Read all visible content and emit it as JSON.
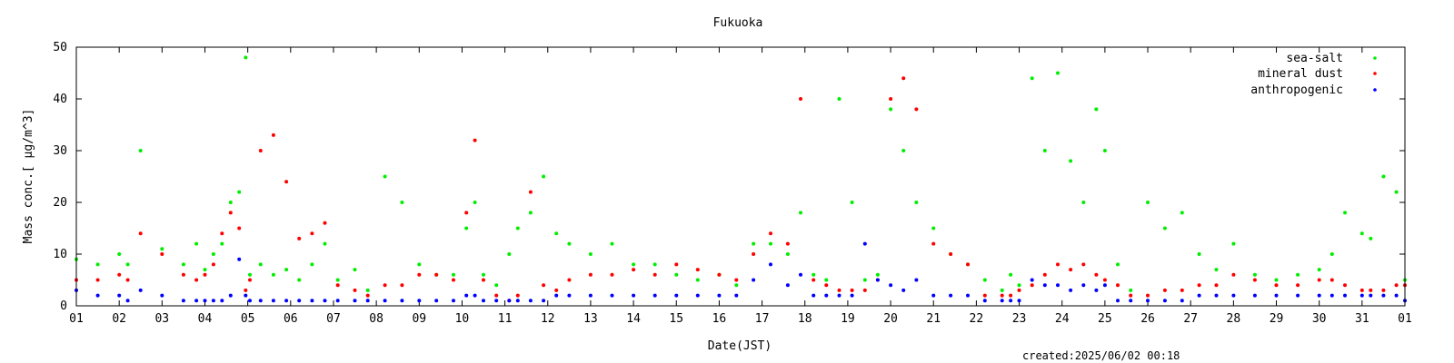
{
  "chart_data": {
    "type": "scatter",
    "title": "Fukuoka",
    "xlabel": "Date(JST)",
    "ylabel": "Mass conc.[ μg/m^3]",
    "xlim": [
      0,
      31
    ],
    "ylim": [
      0,
      50
    ],
    "x_ticks": [
      "01",
      "02",
      "03",
      "04",
      "05",
      "06",
      "07",
      "08",
      "09",
      "10",
      "11",
      "12",
      "13",
      "14",
      "15",
      "16",
      "17",
      "18",
      "19",
      "20",
      "21",
      "22",
      "23",
      "24",
      "25",
      "26",
      "27",
      "28",
      "29",
      "30",
      "31",
      "01"
    ],
    "y_ticks": [
      0,
      10,
      20,
      30,
      40,
      50
    ],
    "grid": false,
    "legend_position": "top-right",
    "footer": "created:2025/06/02 00:18",
    "series": [
      {
        "name": "sea-salt",
        "color": "#00ee00",
        "x": [
          0,
          0.5,
          1,
          1.2,
          1.5,
          2,
          2.5,
          2.8,
          3,
          3.2,
          3.4,
          3.6,
          3.8,
          3.95,
          4.05,
          4.3,
          4.6,
          4.9,
          5.2,
          5.5,
          5.8,
          6.1,
          6.5,
          6.8,
          7.2,
          7.6,
          8,
          8.4,
          8.8,
          9.1,
          9.3,
          9.5,
          9.8,
          10.1,
          10.3,
          10.6,
          10.9,
          11.2,
          11.5,
          12,
          12.5,
          13,
          13.5,
          14,
          14.5,
          15,
          15.4,
          15.8,
          16.2,
          16.6,
          16.9,
          17.2,
          17.5,
          17.8,
          18.1,
          18.4,
          18.7,
          19,
          19.3,
          19.6,
          20,
          20.4,
          20.8,
          21.2,
          21.6,
          21.8,
          22,
          22.3,
          22.6,
          22.9,
          23.2,
          23.5,
          23.8,
          24,
          24.3,
          24.6,
          25,
          25.4,
          25.8,
          26.2,
          26.6,
          27,
          27.5,
          28,
          28.5,
          29,
          29.3,
          29.6,
          30,
          30.2,
          30.5,
          30.8,
          31
        ],
        "y": [
          9,
          8,
          10,
          8,
          30,
          11,
          8,
          12,
          7,
          10,
          12,
          20,
          22,
          48,
          6,
          8,
          6,
          7,
          5,
          8,
          12,
          5,
          7,
          3,
          25,
          20,
          8,
          6,
          6,
          15,
          20,
          6,
          4,
          10,
          15,
          18,
          25,
          14,
          12,
          10,
          12,
          8,
          8,
          6,
          5,
          6,
          4,
          12,
          12,
          10,
          18,
          6,
          5,
          40,
          20,
          5,
          6,
          38,
          30,
          20,
          15,
          10,
          8,
          5,
          3,
          6,
          4,
          44,
          30,
          45,
          28,
          20,
          38,
          30,
          8,
          3,
          20,
          15,
          18,
          10,
          7,
          12,
          6,
          5,
          6,
          7,
          10,
          18,
          14,
          13,
          25,
          22,
          5
        ]
      },
      {
        "name": "mineral dust",
        "color": "#ff0000",
        "x": [
          0,
          0.5,
          1,
          1.2,
          1.5,
          2,
          2.5,
          2.8,
          3,
          3.2,
          3.4,
          3.6,
          3.8,
          3.95,
          4.05,
          4.3,
          4.6,
          4.9,
          5.2,
          5.5,
          5.8,
          6.1,
          6.5,
          6.8,
          7.2,
          7.6,
          8,
          8.4,
          8.8,
          9.1,
          9.3,
          9.5,
          9.8,
          10.1,
          10.3,
          10.6,
          10.9,
          11.2,
          11.5,
          12,
          12.5,
          13,
          13.5,
          14,
          14.5,
          15,
          15.4,
          15.8,
          16.2,
          16.6,
          16.9,
          17.2,
          17.5,
          17.8,
          18.1,
          18.4,
          18.7,
          19,
          19.3,
          19.6,
          20,
          20.4,
          20.8,
          21.2,
          21.6,
          21.8,
          22,
          22.3,
          22.6,
          22.9,
          23.2,
          23.5,
          23.8,
          24,
          24.3,
          24.6,
          25,
          25.4,
          25.8,
          26.2,
          26.6,
          27,
          27.5,
          28,
          28.5,
          29,
          29.3,
          29.6,
          30,
          30.2,
          30.5,
          30.8,
          31
        ],
        "y": [
          5,
          5,
          6,
          5,
          14,
          10,
          6,
          5,
          6,
          8,
          14,
          18,
          15,
          3,
          5,
          30,
          33,
          24,
          13,
          14,
          16,
          4,
          3,
          2,
          4,
          4,
          6,
          6,
          5,
          18,
          32,
          5,
          2,
          1,
          2,
          22,
          4,
          3,
          5,
          6,
          6,
          7,
          6,
          8,
          7,
          6,
          5,
          10,
          14,
          12,
          40,
          5,
          4,
          3,
          3,
          3,
          5,
          40,
          44,
          38,
          12,
          10,
          8,
          2,
          2,
          2,
          3,
          4,
          6,
          8,
          7,
          8,
          6,
          5,
          4,
          2,
          2,
          3,
          3,
          4,
          4,
          6,
          5,
          4,
          4,
          5,
          5,
          4,
          3,
          3,
          3,
          4,
          4
        ]
      },
      {
        "name": "anthropogenic",
        "color": "#0000ff",
        "x": [
          0,
          0.5,
          1,
          1.2,
          1.5,
          2,
          2.5,
          2.8,
          3,
          3.2,
          3.4,
          3.6,
          3.8,
          3.95,
          4.05,
          4.3,
          4.6,
          4.9,
          5.2,
          5.5,
          5.8,
          6.1,
          6.5,
          6.8,
          7.2,
          7.6,
          8,
          8.4,
          8.8,
          9.1,
          9.3,
          9.5,
          9.8,
          10.1,
          10.3,
          10.6,
          10.9,
          11.2,
          11.5,
          12,
          12.5,
          13,
          13.5,
          14,
          14.5,
          15,
          15.4,
          15.8,
          16.2,
          16.6,
          16.9,
          17.2,
          17.5,
          17.8,
          18.1,
          18.4,
          18.7,
          19,
          19.3,
          19.6,
          20,
          20.4,
          20.8,
          21.2,
          21.6,
          21.8,
          22,
          22.3,
          22.6,
          22.9,
          23.2,
          23.5,
          23.8,
          24,
          24.3,
          24.6,
          25,
          25.4,
          25.8,
          26.2,
          26.6,
          27,
          27.5,
          28,
          28.5,
          29,
          29.3,
          29.6,
          30,
          30.2,
          30.5,
          30.8,
          31
        ],
        "y": [
          3,
          2,
          2,
          1,
          3,
          2,
          1,
          1,
          1,
          1,
          1,
          2,
          9,
          2,
          1,
          1,
          1,
          1,
          1,
          1,
          1,
          1,
          1,
          1,
          1,
          1,
          1,
          1,
          1,
          2,
          2,
          1,
          1,
          1,
          1,
          1,
          1,
          2,
          2,
          2,
          2,
          2,
          2,
          2,
          2,
          2,
          2,
          5,
          8,
          4,
          6,
          2,
          2,
          2,
          2,
          12,
          5,
          4,
          3,
          5,
          2,
          2,
          2,
          1,
          1,
          1,
          1,
          5,
          4,
          4,
          3,
          4,
          3,
          4,
          1,
          1,
          1,
          1,
          1,
          2,
          2,
          2,
          2,
          2,
          2,
          2,
          2,
          2,
          2,
          2,
          2,
          2,
          1
        ]
      }
    ]
  }
}
